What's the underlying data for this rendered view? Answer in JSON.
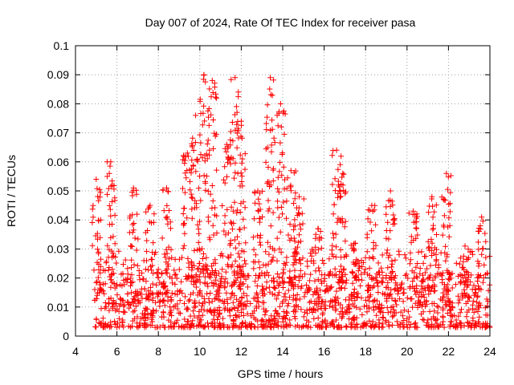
{
  "chart_data": {
    "type": "scatter",
    "title": "Day 007 of 2024, Rate Of TEC Index for receiver pasa",
    "xlabel": "GPS time / hours",
    "ylabel": "ROTI / TECUs",
    "xlim": [
      4,
      24
    ],
    "ylim": [
      0,
      0.1
    ],
    "x_ticks": [
      4,
      6,
      8,
      10,
      12,
      14,
      16,
      18,
      20,
      22,
      24
    ],
    "y_ticks": [
      0,
      0.01,
      0.02,
      0.03,
      0.04,
      0.05,
      0.06,
      0.07,
      0.08,
      0.09,
      0.1
    ],
    "x_tick_labels": [
      "4",
      "6",
      "8",
      "10",
      "12",
      "14",
      "16",
      "18",
      "20",
      "22",
      "24"
    ],
    "y_tick_labels": [
      "0",
      "0.01",
      "0.02",
      "0.03",
      "0.04",
      "0.05",
      "0.06",
      "0.07",
      "0.08",
      "0.09",
      "0.1"
    ],
    "grid": true,
    "marker": "plus",
    "color": "#ff0000",
    "series": [
      {
        "name": "ROTI",
        "x_start": 4.9,
        "x_end": 24.0,
        "baseline_range": [
          0.003,
          0.03
        ],
        "bursts": [
          {
            "x": 5.0,
            "y_max": 0.054
          },
          {
            "x": 5.7,
            "y_max": 0.06
          },
          {
            "x": 6.8,
            "y_max": 0.051
          },
          {
            "x": 7.6,
            "y_max": 0.045
          },
          {
            "x": 8.4,
            "y_max": 0.051
          },
          {
            "x": 9.4,
            "y_max": 0.063
          },
          {
            "x": 9.8,
            "y_max": 0.076
          },
          {
            "x": 10.2,
            "y_max": 0.09
          },
          {
            "x": 10.6,
            "y_max": 0.088
          },
          {
            "x": 11.3,
            "y_max": 0.066
          },
          {
            "x": 11.7,
            "y_max": 0.089
          },
          {
            "x": 12.0,
            "y_max": 0.074
          },
          {
            "x": 12.8,
            "y_max": 0.05
          },
          {
            "x": 13.4,
            "y_max": 0.089
          },
          {
            "x": 13.9,
            "y_max": 0.08
          },
          {
            "x": 14.4,
            "y_max": 0.057
          },
          {
            "x": 14.8,
            "y_max": 0.048
          },
          {
            "x": 15.7,
            "y_max": 0.037
          },
          {
            "x": 16.6,
            "y_max": 0.064
          },
          {
            "x": 16.9,
            "y_max": 0.056
          },
          {
            "x": 17.5,
            "y_max": 0.032
          },
          {
            "x": 18.3,
            "y_max": 0.045
          },
          {
            "x": 19.2,
            "y_max": 0.05
          },
          {
            "x": 20.3,
            "y_max": 0.043
          },
          {
            "x": 21.2,
            "y_max": 0.048
          },
          {
            "x": 21.9,
            "y_max": 0.056
          },
          {
            "x": 22.8,
            "y_max": 0.031
          },
          {
            "x": 23.6,
            "y_max": 0.041
          }
        ]
      }
    ]
  }
}
